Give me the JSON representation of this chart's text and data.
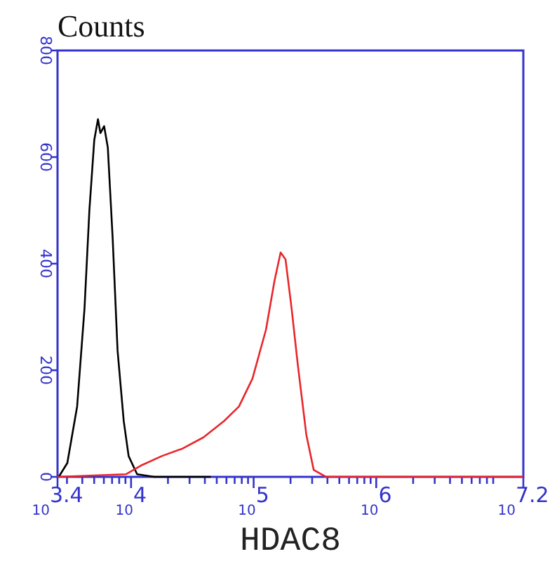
{
  "chart_data": {
    "type": "line",
    "ylabel": "Counts",
    "xlabel": "HDAC8",
    "log": "x",
    "xlim": [
      2512,
      15849000
    ],
    "xticks": [
      {
        "value": 2512,
        "label": "10$^{3.4}$"
      },
      {
        "value": 3000,
        "label": null
      },
      {
        "value": 4000,
        "label": null
      },
      {
        "value": 5000,
        "label": null
      },
      {
        "value": 6000,
        "label": null
      },
      {
        "value": 7000,
        "label": null
      },
      {
        "value": 8000,
        "label": null
      },
      {
        "value": 9000,
        "label": null
      },
      {
        "value": 10000,
        "label": "10$^{4}$"
      },
      {
        "value": 20000,
        "label": null
      },
      {
        "value": 30000,
        "label": null
      },
      {
        "value": 40000,
        "label": null
      },
      {
        "value": 50000,
        "label": null
      },
      {
        "value": 60000,
        "label": null
      },
      {
        "value": 70000,
        "label": null
      },
      {
        "value": 80000,
        "label": null
      },
      {
        "value": 90000,
        "label": null
      },
      {
        "value": 100000,
        "label": "10$^{5}$"
      },
      {
        "value": 200000,
        "label": null
      },
      {
        "value": 300000,
        "label": null
      },
      {
        "value": 400000,
        "label": null
      },
      {
        "value": 500000,
        "label": null
      },
      {
        "value": 600000,
        "label": null
      },
      {
        "value": 700000,
        "label": null
      },
      {
        "value": 800000,
        "label": null
      },
      {
        "value": 900000,
        "label": null
      },
      {
        "value": 1000000,
        "label": "10$^{6}$"
      },
      {
        "value": 2000000,
        "label": null
      },
      {
        "value": 3000000,
        "label": null
      },
      {
        "value": 4000000,
        "label": null
      },
      {
        "value": 5000000,
        "label": null
      },
      {
        "value": 6000000,
        "label": null
      },
      {
        "value": 7000000,
        "label": null
      },
      {
        "value": 8000000,
        "label": null
      },
      {
        "value": 9000000,
        "label": null
      },
      {
        "value": 15849000,
        "label": "10$^{7.2}$"
      }
    ],
    "ylim": [
      0,
      800
    ],
    "yticks": [
      0,
      200,
      400,
      600,
      800
    ],
    "grid": false,
    "marker": "none",
    "line_style": "solid",
    "series": [
      {
        "color": "#000000",
        "x": [
          2570,
          3020,
          3630,
          4170,
          4570,
          5010,
          5370,
          5620,
          6030,
          6460,
          7080,
          7760,
          8710,
          9550,
          11200,
          15500,
          44700
        ],
        "values": [
          0,
          26,
          132,
          316,
          500,
          632,
          671,
          645,
          658,
          618,
          447,
          237,
          105,
          39,
          5,
          0,
          0
        ]
      },
      {
        "color": "#e8262b",
        "x": [
          2512,
          9120,
          12000,
          17800,
          26300,
          38900,
          57500,
          75900,
          97700,
          126000,
          148000,
          166000,
          182000,
          204000,
          229000,
          269000,
          309000,
          389000,
          813000,
          15800000
        ],
        "values": [
          0,
          5,
          21,
          39,
          53,
          74,
          105,
          132,
          184,
          276,
          368,
          421,
          408,
          316,
          211,
          79,
          13,
          0,
          0,
          0
        ]
      }
    ]
  }
}
